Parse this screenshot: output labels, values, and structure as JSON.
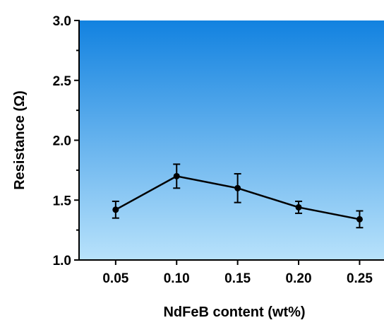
{
  "chart_data": {
    "type": "line",
    "xlabel": "NdFeB content (wt%)",
    "ylabel": "Resistance (Ω)",
    "x": [
      0.05,
      0.1,
      0.15,
      0.2,
      0.25
    ],
    "x_tick_labels": [
      "0.05",
      "0.10",
      "0.15",
      "0.20",
      "0.25"
    ],
    "y_tick_labels": [
      "1.0",
      "1.5",
      "2.0",
      "2.5",
      "3.0"
    ],
    "series": [
      {
        "values": [
          1.42,
          1.7,
          1.6,
          1.44,
          1.34
        ],
        "errors": [
          0.07,
          0.1,
          0.12,
          0.05,
          0.07
        ],
        "color": "#000000"
      }
    ],
    "xlim": [
      0.02,
      0.27
    ],
    "ylim": [
      1.0,
      3.0
    ],
    "y_ticks": [
      1.0,
      1.5,
      2.0,
      2.5,
      3.0
    ],
    "grid": false,
    "background_gradient": {
      "top": "#1282e0",
      "bottom": "#b8e2fb"
    }
  }
}
